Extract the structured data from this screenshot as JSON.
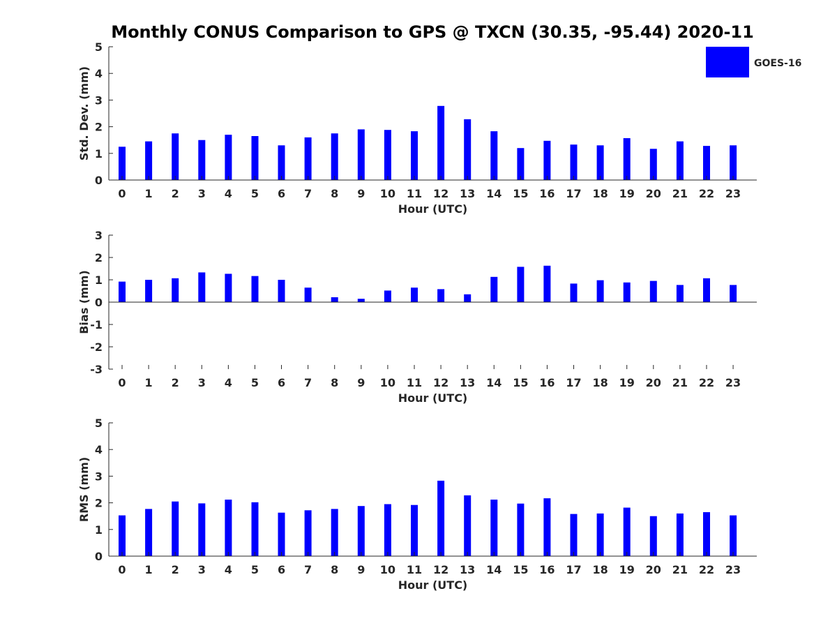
{
  "figure": {
    "title": "Monthly CONUS Comparison to GPS @ TXCN (30.35, -95.44) 2020-11",
    "legend": {
      "label": "GOES-16",
      "color": "#0000ff",
      "placement": "top-right"
    }
  },
  "chart_data": [
    {
      "type": "bar",
      "title": "",
      "xlabel": "Hour (UTC)",
      "ylabel": "Std. Dev. (mm)",
      "ylim": [
        0,
        5
      ],
      "yticks": [
        "0",
        "1",
        "2",
        "3",
        "4",
        "5"
      ],
      "categories": [
        "0",
        "1",
        "2",
        "3",
        "4",
        "5",
        "6",
        "7",
        "8",
        "9",
        "10",
        "11",
        "12",
        "13",
        "14",
        "15",
        "16",
        "17",
        "18",
        "19",
        "20",
        "21",
        "22",
        "23"
      ],
      "series": [
        {
          "name": "GOES-16",
          "color": "#0000ff",
          "values": [
            1.25,
            1.45,
            1.75,
            1.5,
            1.7,
            1.65,
            1.3,
            1.6,
            1.75,
            1.9,
            1.88,
            1.83,
            2.78,
            2.28,
            1.83,
            1.2,
            1.47,
            1.33,
            1.3,
            1.57,
            1.17,
            1.45,
            1.28,
            1.3
          ]
        }
      ],
      "grid": false
    },
    {
      "type": "bar",
      "title": "",
      "xlabel": "Hour (UTC)",
      "ylabel": "Bias (mm)",
      "ylim": [
        -3,
        3
      ],
      "yticks": [
        "-3",
        "-2",
        "-1",
        "0",
        "1",
        "2",
        "3"
      ],
      "categories": [
        "0",
        "1",
        "2",
        "3",
        "4",
        "5",
        "6",
        "7",
        "8",
        "9",
        "10",
        "11",
        "12",
        "13",
        "14",
        "15",
        "16",
        "17",
        "18",
        "19",
        "20",
        "21",
        "22",
        "23"
      ],
      "series": [
        {
          "name": "GOES-16",
          "color": "#0000ff",
          "values": [
            0.92,
            1.0,
            1.07,
            1.33,
            1.27,
            1.17,
            1.0,
            0.65,
            0.22,
            0.15,
            0.52,
            0.65,
            0.58,
            0.35,
            1.13,
            1.58,
            1.63,
            0.83,
            0.98,
            0.88,
            0.95,
            0.77,
            1.07,
            0.77
          ]
        }
      ],
      "grid": false
    },
    {
      "type": "bar",
      "title": "",
      "xlabel": "Hour (UTC)",
      "ylabel": "RMS (mm)",
      "ylim": [
        0,
        5
      ],
      "yticks": [
        "0",
        "1",
        "2",
        "3",
        "4",
        "5"
      ],
      "categories": [
        "0",
        "1",
        "2",
        "3",
        "4",
        "5",
        "6",
        "7",
        "8",
        "9",
        "10",
        "11",
        "12",
        "13",
        "14",
        "15",
        "16",
        "17",
        "18",
        "19",
        "20",
        "21",
        "22",
        "23"
      ],
      "series": [
        {
          "name": "GOES-16",
          "color": "#0000ff",
          "values": [
            1.53,
            1.77,
            2.05,
            1.98,
            2.12,
            2.02,
            1.63,
            1.72,
            1.77,
            1.88,
            1.95,
            1.92,
            2.83,
            2.28,
            2.12,
            1.97,
            2.17,
            1.58,
            1.6,
            1.82,
            1.5,
            1.6,
            1.65,
            1.53
          ]
        }
      ],
      "grid": false
    }
  ]
}
